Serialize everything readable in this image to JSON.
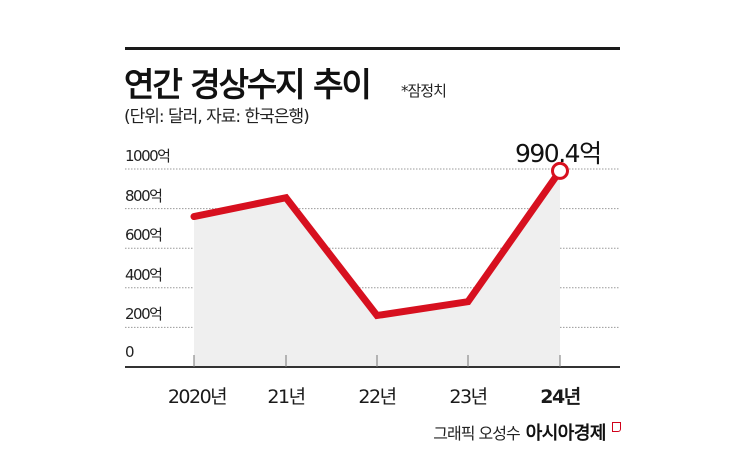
{
  "header": {
    "title": "연간 경상수지 추이",
    "note": "*잠정치",
    "subtitle": "(단위: 달러, 자료: 한국은행)"
  },
  "callout": {
    "label": "990.4억"
  },
  "y_axis": {
    "labels": [
      "1000억",
      "800억",
      "600억",
      "400억",
      "200억",
      "0"
    ]
  },
  "x_axis": {
    "labels": [
      "2020년",
      "21년",
      "22년",
      "23년",
      "24년"
    ]
  },
  "credit": {
    "text": "그래픽 오성수",
    "brand": "아시아경제"
  },
  "colors": {
    "line": "#d7101f",
    "area": "#efefef",
    "grid": "#9a9a9a",
    "axis": "#333333"
  },
  "chart_data": {
    "type": "line",
    "title": "연간 경상수지 추이",
    "subtitle": "(단위: 달러, 자료: 한국은행)",
    "annotation": "*잠정치",
    "categories": [
      "2020년",
      "21년",
      "22년",
      "23년",
      "24년"
    ],
    "series": [
      {
        "name": "경상수지 (억 달러)",
        "values": [
          760,
          855,
          260,
          330,
          990.4
        ]
      }
    ],
    "data_labels": [
      {
        "category": "24년",
        "label": "990.4억"
      }
    ],
    "xlabel": "",
    "ylabel": "억 달러",
    "ylim": [
      0,
      1000
    ],
    "yticks": [
      0,
      200,
      400,
      600,
      800,
      1000
    ],
    "grid": true,
    "legend": "none"
  }
}
